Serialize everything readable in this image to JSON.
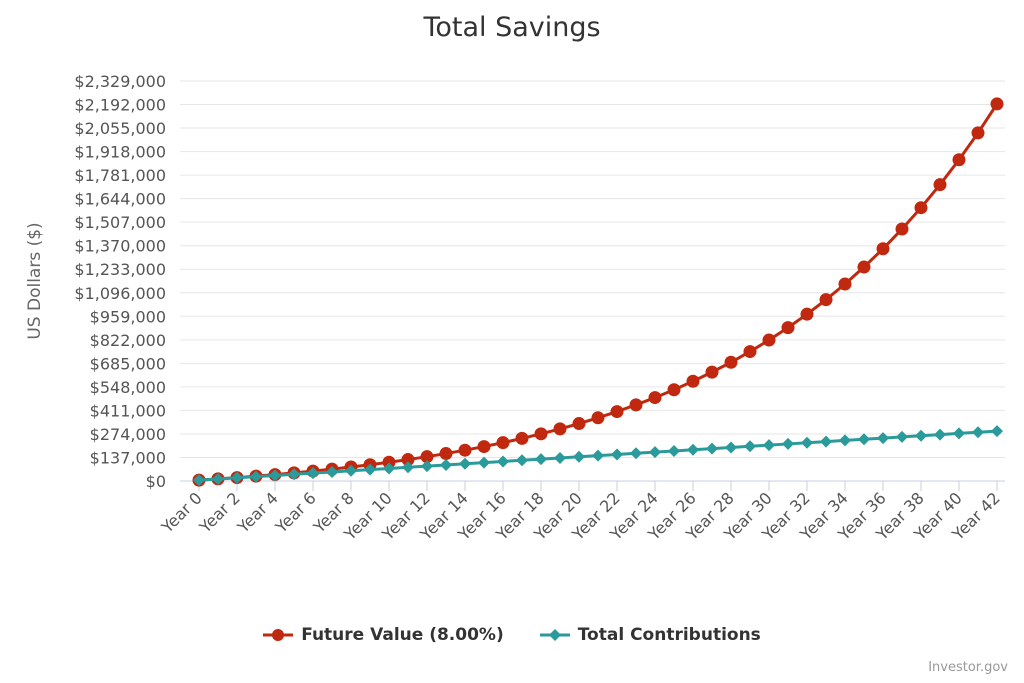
{
  "chart_data": {
    "type": "line",
    "title": "Total Savings",
    "ylabel": "US Dollars ($)",
    "xlabel": "",
    "x": [
      0,
      1,
      2,
      3,
      4,
      5,
      6,
      7,
      8,
      9,
      10,
      11,
      12,
      13,
      14,
      15,
      16,
      17,
      18,
      19,
      20,
      21,
      22,
      23,
      24,
      25,
      26,
      27,
      28,
      29,
      30,
      31,
      32,
      33,
      34,
      35,
      36,
      37,
      38,
      39,
      40,
      41,
      42
    ],
    "x_tick_labels": [
      "Year 0",
      "Year 2",
      "Year 4",
      "Year 6",
      "Year 8",
      "Year 10",
      "Year 12",
      "Year 14",
      "Year 16",
      "Year 18",
      "Year 20",
      "Year 22",
      "Year 24",
      "Year 26",
      "Year 28",
      "Year 30",
      "Year 32",
      "Year 34",
      "Year 36",
      "Year 38",
      "Year 40",
      "Year 42"
    ],
    "y_tick_labels": [
      "$0",
      "$137,000",
      "$274,000",
      "$411,000",
      "$548,000",
      "$685,000",
      "$822,000",
      "$959,000",
      "$1,096,000",
      "$1,233,000",
      "$1,370,000",
      "$1,507,000",
      "$1,644,000",
      "$1,781,000",
      "$1,918,000",
      "$2,055,000",
      "$2,192,000",
      "$2,329,000"
    ],
    "ylim": [
      0,
      2329000
    ],
    "grid": true,
    "legend_position": "bottom",
    "series": [
      {
        "name": "Future Value (8.00%)",
        "color": "#c0280f",
        "marker": "circle",
        "values": [
          5000,
          12200,
          19976,
          28374,
          37444,
          47240,
          57819,
          69244,
          81584,
          94910,
          109303,
          124848,
          141635,
          159766,
          179347,
          200495,
          223335,
          248002,
          274642,
          303413,
          334486,
          368045,
          404289,
          443432,
          485706,
          531363,
          580672,
          633925,
          691440,
          753555,
          820639,
          893090,
          971337,
          1055845,
          1147112,
          1245681,
          1352135,
          1467106,
          1591275,
          1725377,
          1870207,
          2026623,
          2195553
        ]
      },
      {
        "name": "Total Contributions",
        "color": "#2a9a9a",
        "marker": "diamond",
        "values": [
          5000,
          11800,
          18600,
          25400,
          32200,
          39000,
          45800,
          52600,
          59400,
          66200,
          73000,
          79800,
          86600,
          93400,
          100200,
          107000,
          113800,
          120600,
          127400,
          134200,
          141000,
          147800,
          154600,
          161400,
          168200,
          175000,
          181800,
          188600,
          195400,
          202200,
          209000,
          215800,
          222600,
          229400,
          236200,
          243000,
          249800,
          256600,
          263400,
          270200,
          277000,
          283800,
          290600
        ]
      }
    ]
  },
  "credit": "Investor.gov"
}
